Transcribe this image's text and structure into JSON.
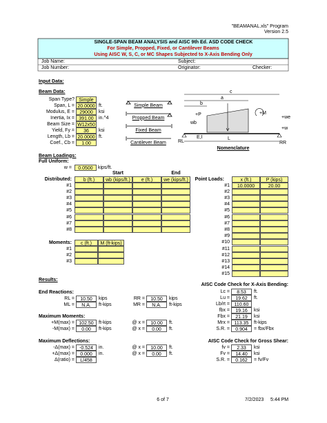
{
  "header": {
    "program": "\"BEAMANAL.xls\" Program",
    "version": "Version 2.5"
  },
  "title": {
    "main": "SINGLE-SPAN BEAM ANALYSIS and AISC 9th Ed. ASD CODE CHECK",
    "sub1": "For Simple, Propped, Fixed, or Cantilever Beams",
    "sub2": "Using AISC W, S, C, or MC Shapes Subjected to X-Axis Bending Only"
  },
  "job": {
    "job_name": "Job Name:",
    "subject": "Subject:",
    "job_number": "Job Number:",
    "originator": "Originator:",
    "checker": "Checker:"
  },
  "input": {
    "heading": "Input Data:",
    "beam_data": "Beam Data:",
    "fields": [
      {
        "label": "Span Type?",
        "value": "Simple"
      },
      {
        "label": "Span, L =",
        "value": "20.0000",
        "unit": "ft."
      },
      {
        "label": "Modulus, E =",
        "value": "29000",
        "unit": "ksi"
      },
      {
        "label": "Inertia, Ix =",
        "value": "391.00",
        "unit": "in.^4"
      },
      {
        "label": "Beam Size =",
        "value": "W12x50"
      },
      {
        "label": "Yield, Fy =",
        "value": "36",
        "unit": "ksi"
      },
      {
        "label": "Length, Lb =",
        "value": "20.0000",
        "unit": "ft."
      },
      {
        "label": "Coef., Cb =",
        "value": "1.00"
      }
    ]
  },
  "diagrams": {
    "labels": [
      "Simple Beam",
      "Propped Beam",
      "Fixed Beam",
      "Cantilever Beam"
    ],
    "nomenclature": {
      "title": "Nomenclature",
      "c": "c",
      "a": "a",
      "b": "b",
      "p": "+P",
      "m": "+M",
      "we": "+we",
      "w": "+w",
      "wb": "wb",
      "ei": "E,I",
      "l": "L",
      "rl": "RL",
      "rr": "RR"
    }
  },
  "loadings": {
    "heading": "Beam Loadings:",
    "full_uniform": "Full Uniform:",
    "w": {
      "label": "w =",
      "value": "0.0500",
      "unit": "kips/ft."
    },
    "start": "Start",
    "end": "End",
    "distributed": {
      "label": "Distributed:",
      "columns": [
        "b (ft.)",
        "wb (kips/ft.)",
        "e (ft.)",
        "we (kips/ft.)"
      ],
      "rows": [
        "#1",
        "#2",
        "#3",
        "#4",
        "#5",
        "#6",
        "#7",
        "#8"
      ]
    },
    "point": {
      "label": "Point Loads:",
      "columns": [
        "x (ft.)",
        "P (kips)"
      ],
      "rows": [
        {
          "label": "#1",
          "x": "10.0000",
          "P": "20.00"
        },
        {
          "label": "#2"
        },
        {
          "label": "#3"
        },
        {
          "label": "#4"
        },
        {
          "label": "#5"
        },
        {
          "label": "#6"
        },
        {
          "label": "#7"
        },
        {
          "label": "#8"
        },
        {
          "label": "#9"
        },
        {
          "label": "#10"
        },
        {
          "label": "#11"
        },
        {
          "label": "#12"
        },
        {
          "label": "#13"
        },
        {
          "label": "#14"
        },
        {
          "label": "#15"
        }
      ]
    },
    "moments": {
      "label": "Moments:",
      "columns": [
        "c (ft.)",
        "M (ft-kips)"
      ],
      "rows": [
        "#1",
        "#2",
        "#3"
      ]
    }
  },
  "results": {
    "heading": "Results:",
    "reactions": {
      "heading": "End Reactions:",
      "rows": [
        {
          "label": "RL =",
          "value": "10.50",
          "unit": "kips",
          "label2": "RR =",
          "value2": "10.50",
          "unit2": "kips"
        },
        {
          "label": "ML =",
          "value": "N.A.",
          "unit": "ft-kips",
          "label2": "MR =",
          "value2": "N.A.",
          "unit2": "ft-kips"
        }
      ]
    },
    "moments": {
      "heading": "Maximum Moments:",
      "rows": [
        {
          "label": "+M(max) =",
          "value": "102.50",
          "unit": "ft-kips",
          "label2": "@ x =",
          "value2": "10.00",
          "unit2": "ft."
        },
        {
          "label": "-M(max) =",
          "value": "0.00",
          "unit": "ft-kips",
          "label2": "@ x =",
          "value2": "0.00",
          "unit2": "ft."
        }
      ]
    },
    "deflections": {
      "heading": "Maximum Deflections:",
      "rows": [
        {
          "label": "-Δ(max) =",
          "value": "-0.524",
          "unit": "in.",
          "label2": "@ x =",
          "value2": "10.00",
          "unit2": "ft."
        },
        {
          "label": "+Δ(max) =",
          "value": "0.000",
          "unit": "in.",
          "label2": "@ x =",
          "value2": "0.00",
          "unit2": "ft."
        },
        {
          "label": "Δ(ratio) =",
          "value": "L/458"
        }
      ]
    },
    "bending": {
      "heading": "AISC Code Check for X-Axis Bending:",
      "rows": [
        {
          "label": "Lc =",
          "value": "8.53",
          "unit": "ft."
        },
        {
          "label": "Lu =",
          "value": "19.62",
          "unit": "ft."
        },
        {
          "label": "Lb/rt =",
          "value": "110.60"
        },
        {
          "label": "fbx =",
          "value": "19.16",
          "unit": "ksi"
        },
        {
          "label": "Fbx =",
          "value": "21.19",
          "unit": "ksi"
        },
        {
          "label": "Mrx =",
          "value": "113.35",
          "unit": "ft-kips"
        },
        {
          "label": "S.R. =",
          "value": "0.904",
          "unit": "= fbx/Fbx"
        }
      ]
    },
    "shear": {
      "heading": "AISC Code Check for Gross Shear:",
      "rows": [
        {
          "label": "fv =",
          "value": "2.33",
          "unit": "ksi"
        },
        {
          "label": "Fv =",
          "value": "14.40",
          "unit": "ksi"
        },
        {
          "label": "S.R. =",
          "value": "0.162",
          "unit": "= fv/Fv"
        }
      ]
    }
  },
  "footer": {
    "page": "6 of 7",
    "date": "7/2/2023",
    "time": "5:44 PM"
  }
}
